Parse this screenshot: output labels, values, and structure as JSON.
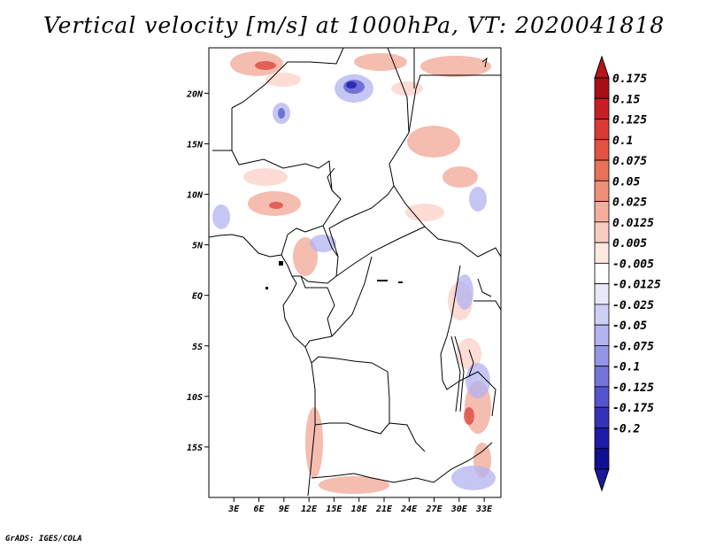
{
  "title": "Vertical velocity [m/s] at 1000hPa, VT: 2020041818",
  "footer": "GrADS: IGES/COLA",
  "map": {
    "lon_range": [
      0,
      35
    ],
    "lat_range": [
      -20,
      24.5
    ],
    "lat_ticks": [
      {
        "value": 20,
        "label": "20N"
      },
      {
        "value": 15,
        "label": "15N"
      },
      {
        "value": 10,
        "label": "10N"
      },
      {
        "value": 5,
        "label": "5N"
      },
      {
        "value": 0,
        "label": "EQ"
      },
      {
        "value": -5,
        "label": "5S"
      },
      {
        "value": -10,
        "label": "10S"
      },
      {
        "value": -15,
        "label": "15S"
      }
    ],
    "lon_ticks": [
      {
        "value": 3,
        "label": "3E"
      },
      {
        "value": 6,
        "label": "6E"
      },
      {
        "value": 9,
        "label": "9E"
      },
      {
        "value": 12,
        "label": "12E"
      },
      {
        "value": 15,
        "label": "15E"
      },
      {
        "value": 18,
        "label": "18E"
      },
      {
        "value": 21,
        "label": "21E"
      },
      {
        "value": 24,
        "label": "24E"
      },
      {
        "value": 27,
        "label": "27E"
      },
      {
        "value": 30,
        "label": "30E"
      },
      {
        "value": 33,
        "label": "33E"
      }
    ]
  },
  "colorbar": {
    "labels": [
      "0.175",
      "0.15",
      "0.125",
      "0.1",
      "0.075",
      "0.05",
      "0.025",
      "0.0125",
      "0.005",
      "-0.005",
      "-0.0125",
      "-0.025",
      "-0.05",
      "-0.075",
      "-0.1",
      "-0.125",
      "-0.175",
      "-0.2"
    ],
    "colors": [
      "#a50f15",
      "#c62026",
      "#d93a32",
      "#e2543f",
      "#e8725a",
      "#ef9079",
      "#f5ae9c",
      "#fbcdc2",
      "#fde8e2",
      "#ffffff",
      "#e8e8fb",
      "#cfcff6",
      "#b3b3f0",
      "#9595e8",
      "#7474dc",
      "#5454cd",
      "#3434b8",
      "#1c1ca6",
      "#101093"
    ],
    "top_color": "#b5161e",
    "bottom_color": "#1a1a9c"
  }
}
